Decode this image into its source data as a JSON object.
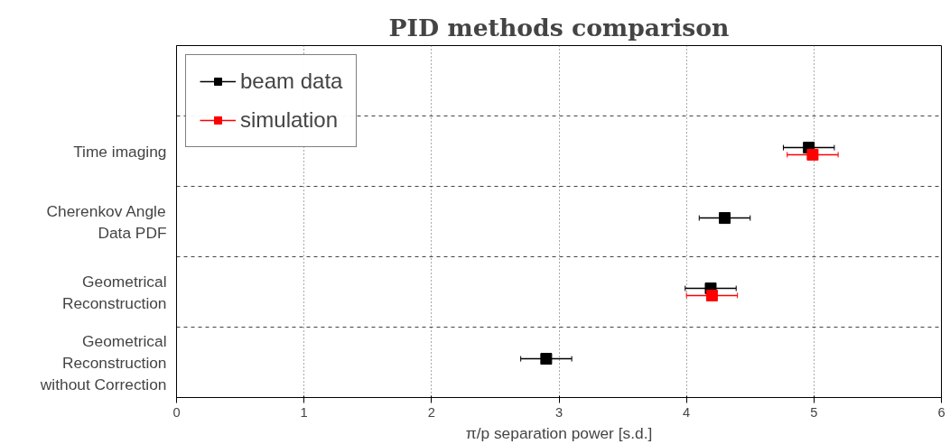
{
  "chart_data": {
    "type": "scatter",
    "orientation": "horizontal",
    "title": "PID methods comparison",
    "xlabel": "π/p separation power [s.d.]",
    "categories": [
      null,
      "Time imaging",
      "Cherenkov Angle\nData PDF",
      "Geometrical\nReconstruction",
      "Geometrical\nReconstruction\nwithout Correction"
    ],
    "series": [
      {
        "name": "beam data",
        "color": "#000000",
        "values": [
          null,
          4.96,
          4.3,
          4.19,
          2.9
        ],
        "errors": [
          null,
          0.2,
          0.2,
          0.2,
          0.2
        ]
      },
      {
        "name": "simulation",
        "color": "#ff0000",
        "values": [
          null,
          4.99,
          null,
          4.2,
          null
        ],
        "errors": [
          null,
          0.2,
          null,
          0.2,
          null
        ]
      }
    ],
    "xlim": [
      0,
      6
    ],
    "xticks": [
      0,
      1,
      2,
      3,
      4,
      5,
      6
    ],
    "grid": true,
    "legend": "top left",
    "marker": "square"
  }
}
